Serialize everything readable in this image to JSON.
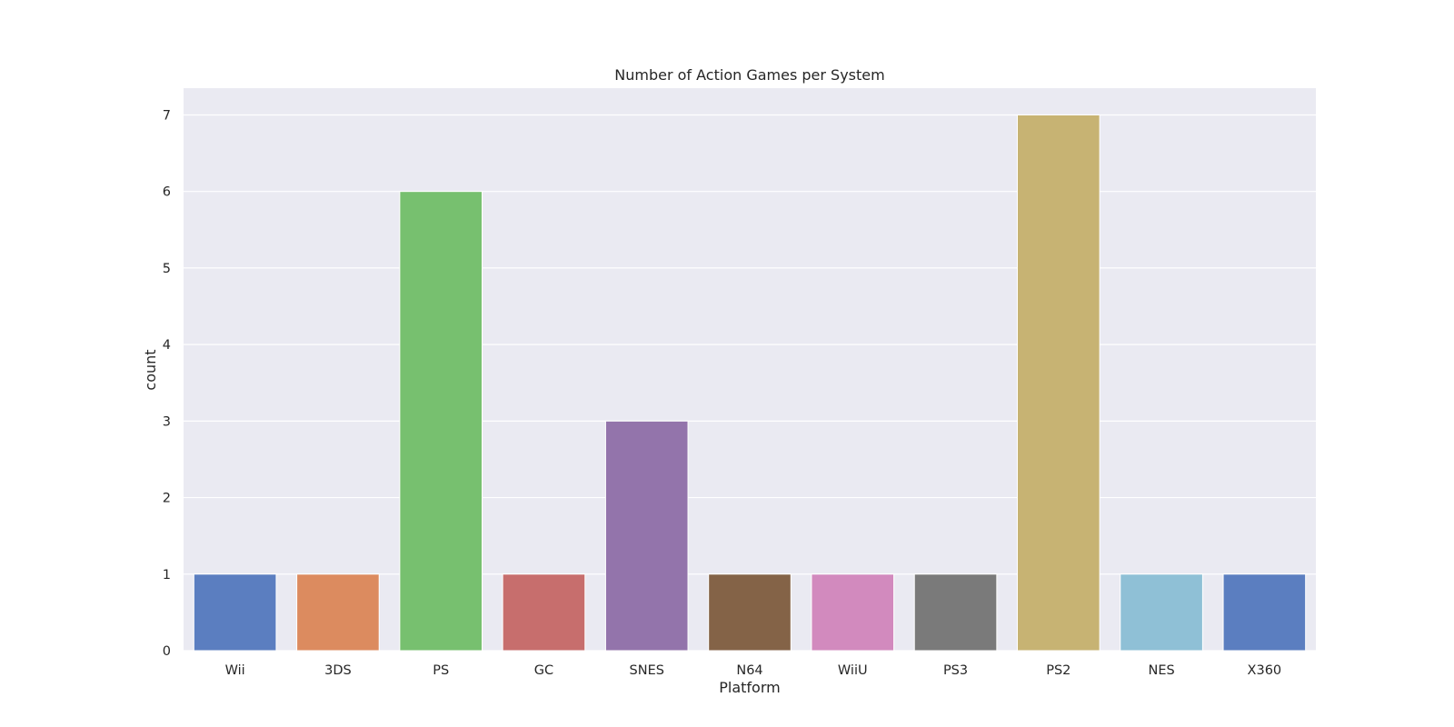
{
  "chart_data": {
    "type": "bar",
    "title": "Number of Action Games per System",
    "xlabel": "Platform",
    "ylabel": "count",
    "categories": [
      "Wii",
      "3DS",
      "PS",
      "GC",
      "SNES",
      "N64",
      "WiiU",
      "PS3",
      "PS2",
      "NES",
      "X360"
    ],
    "values": [
      1,
      1,
      6,
      1,
      3,
      1,
      1,
      1,
      7,
      1,
      1
    ],
    "colors": [
      "#5b7ec0",
      "#dc8b5f",
      "#77c06f",
      "#c76e6d",
      "#9374ab",
      "#846347",
      "#d28abe",
      "#7a7a7a",
      "#c7b373",
      "#8fc0d6",
      "#5b7ec0"
    ],
    "ylim": [
      0,
      7.35
    ],
    "yticks": [
      0,
      1,
      2,
      3,
      4,
      5,
      6,
      7
    ],
    "grid": true,
    "legend": "none",
    "plot_background": "#eaeaf2",
    "grid_color": "#ffffff"
  }
}
